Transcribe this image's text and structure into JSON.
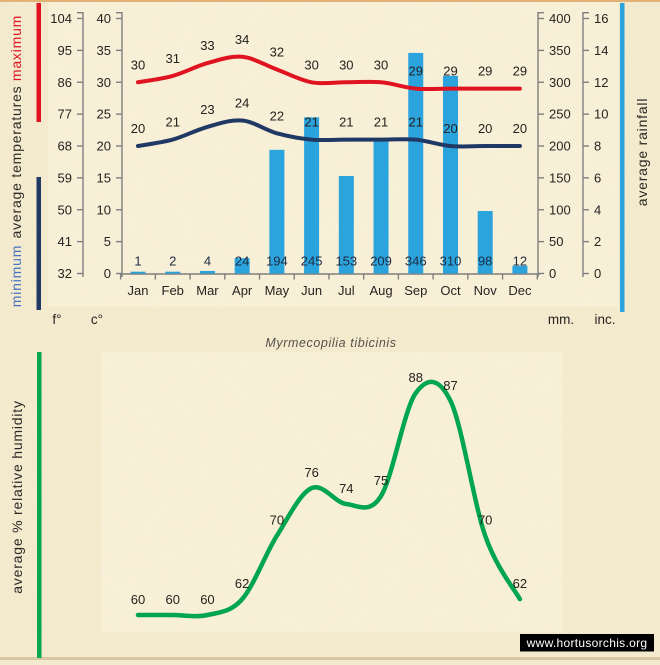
{
  "title": "Myrmecopilia tibicinis",
  "watermark": "www.hortusorchis.org",
  "sidebar": {
    "minimum_label": "minimum",
    "average_temperatures_label": "average temperatures",
    "maximum_label": "maximum",
    "average_rainfall_label": "average rainfall",
    "humidity_label": "average %  relative humidity"
  },
  "units": {
    "fahrenheit": "f°",
    "celsius": "c°",
    "millimeters": "mm.",
    "inches": "inc."
  },
  "colors": {
    "background": "#f3e9cd",
    "plot_background": "#f8efd7",
    "max_temp_line": "#e01421",
    "min_temp_line": "#1f3864",
    "rain_bar": "#2ba3dc",
    "humidity_line": "#00a550",
    "axis_line": "#7f7f7f",
    "minimum_text": "#4472c4",
    "maximum_text": "#e01421",
    "watermark_background": "#000000",
    "watermark_text": "#ffffff",
    "top_edge_strip": "#dda45e",
    "bottom_edge_strip": "#d4c49c"
  },
  "chart_data": [
    {
      "type": "bar",
      "subtype": "climograph: rainfall bars + smoothed temperature lines",
      "categories": [
        "Jan",
        "Feb",
        "Mar",
        "Apr",
        "May",
        "Jun",
        "Jul",
        "Aug",
        "Sep",
        "Oct",
        "Nov",
        "Dec"
      ],
      "series": [
        {
          "name": "maximum temperature",
          "type": "line",
          "unit": "°C",
          "color": "#e01421",
          "values": [
            30,
            31,
            33,
            34,
            32,
            30,
            30,
            30,
            29,
            29,
            29,
            29
          ]
        },
        {
          "name": "minimum temperature",
          "type": "line",
          "unit": "°C",
          "color": "#1f3864",
          "values": [
            20,
            21,
            23,
            24,
            22,
            21,
            21,
            21,
            21,
            20,
            20,
            20
          ]
        },
        {
          "name": "average rainfall",
          "type": "bar",
          "unit": "mm",
          "color": "#2ba3dc",
          "values": [
            1,
            2,
            4,
            24,
            194,
            245,
            153,
            209,
            346,
            310,
            98,
            12
          ]
        }
      ],
      "axes": {
        "fahrenheit_ticks": [
          104,
          95,
          86,
          77,
          68,
          59,
          50,
          41,
          32
        ],
        "celsius_ticks": [
          40,
          35,
          30,
          25,
          20,
          15,
          10,
          5,
          0
        ],
        "celsius_range": [
          0,
          40
        ],
        "mm_ticks": [
          400,
          350,
          300,
          250,
          200,
          150,
          100,
          50,
          0
        ],
        "inch_ticks": [
          16,
          14,
          12,
          10,
          8,
          6,
          4,
          2,
          0
        ],
        "mm_range": [
          0,
          400
        ],
        "grid": false
      },
      "legend_position": "rotated side labels (left: temperatures, right: rainfall)",
      "point_labels": true
    },
    {
      "type": "line",
      "title": "Myrmecopilia tibicinis",
      "categories": [
        "Jan",
        "Feb",
        "Mar",
        "Apr",
        "May",
        "Jun",
        "Jul",
        "Aug",
        "Sep",
        "Oct",
        "Nov",
        "Dec"
      ],
      "series": [
        {
          "name": "average % relative humidity",
          "type": "line",
          "unit": "%",
          "color": "#00a550",
          "values": [
            60,
            60,
            60,
            62,
            70,
            76,
            74,
            75,
            88,
            87,
            70,
            62
          ]
        }
      ],
      "ylim": [
        56,
        94
      ],
      "axes_visible": false,
      "grid": false,
      "point_labels": true
    }
  ]
}
